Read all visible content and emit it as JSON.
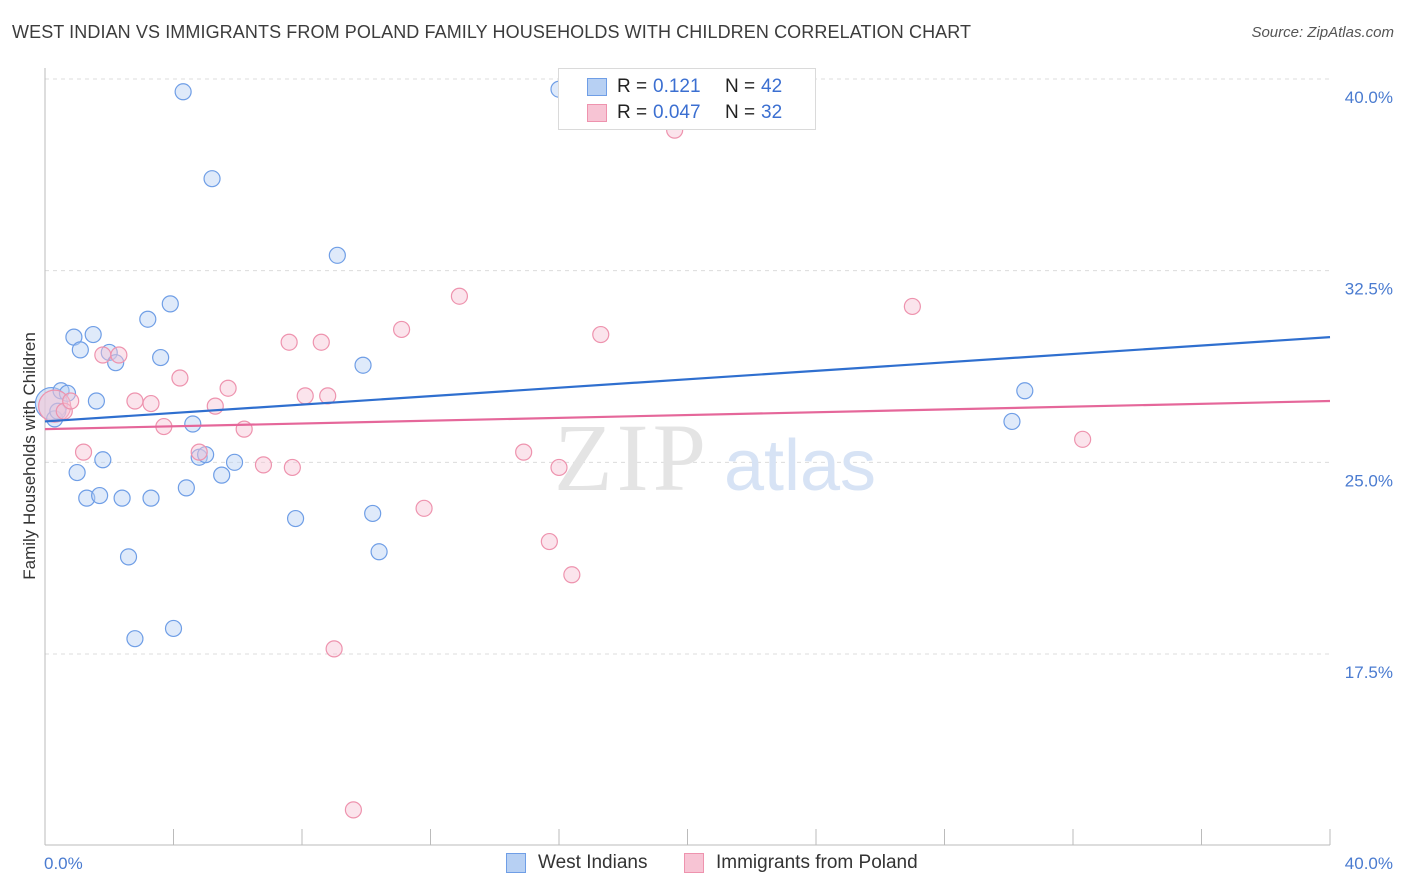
{
  "title": "WEST INDIAN VS IMMIGRANTS FROM POLAND FAMILY HOUSEHOLDS WITH CHILDREN CORRELATION CHART",
  "source": "Source: ZipAtlas.com",
  "watermark": {
    "zip": "ZIP",
    "atlas": "atlas"
  },
  "legend_top": {
    "rows": [
      {
        "r_label": "R =",
        "r_value": "0.121",
        "n_label": "N =",
        "n_value": "42"
      },
      {
        "r_label": "R =",
        "r_value": "0.047",
        "n_label": "N =",
        "n_value": "32"
      }
    ]
  },
  "legend_bottom": {
    "items": [
      "West Indians",
      "Immigrants from Poland"
    ]
  },
  "colors": {
    "blue_fill": "#b7d0f3",
    "blue_stroke": "#6f9ee6",
    "blue_line": "#2f6fcf",
    "pink_fill": "#f7c4d4",
    "pink_stroke": "#ee93ae",
    "pink_line": "#e5679a",
    "tick_text": "#4a7bd0",
    "grid": "#dcdcdc"
  },
  "chart_data": {
    "type": "scatter",
    "xlabel": "",
    "ylabel": "Family Households with Children",
    "xlim": [
      0,
      40
    ],
    "ylim": [
      10.0,
      41.0
    ],
    "x_tick_labels": [
      {
        "value": 0,
        "label": "0.0%"
      },
      {
        "value": 40,
        "label": "40.0%"
      }
    ],
    "y_ticks": [
      {
        "value": 17.5,
        "label": "17.5%"
      },
      {
        "value": 25.0,
        "label": "25.0%"
      },
      {
        "value": 32.5,
        "label": "32.5%"
      },
      {
        "value": 40.0,
        "label": "40.0%"
      }
    ],
    "grid": "horizontal dashed",
    "series": [
      {
        "name": "West Indians",
        "color": "blue",
        "r": "0.121",
        "n": "42",
        "trend": {
          "x": [
            0,
            40
          ],
          "y": [
            26.6,
            29.9
          ]
        },
        "points": [
          [
            0.2,
            27.3,
            "big"
          ],
          [
            0.3,
            26.7
          ],
          [
            0.4,
            27.0
          ],
          [
            0.5,
            27.8
          ],
          [
            0.7,
            27.7
          ],
          [
            0.9,
            29.9
          ],
          [
            1.0,
            24.6
          ],
          [
            1.1,
            29.4
          ],
          [
            1.3,
            23.6
          ],
          [
            1.5,
            30.0
          ],
          [
            1.6,
            27.4
          ],
          [
            1.7,
            23.7
          ],
          [
            1.8,
            25.1
          ],
          [
            2.0,
            29.3
          ],
          [
            2.2,
            28.9
          ],
          [
            2.4,
            23.6
          ],
          [
            2.6,
            21.3
          ],
          [
            2.8,
            18.1
          ],
          [
            3.2,
            30.6
          ],
          [
            3.3,
            23.6
          ],
          [
            3.6,
            29.1
          ],
          [
            3.9,
            31.2
          ],
          [
            4.0,
            18.5
          ],
          [
            4.3,
            39.5
          ],
          [
            4.4,
            24.0
          ],
          [
            4.6,
            26.5
          ],
          [
            4.8,
            25.2
          ],
          [
            5.0,
            25.3
          ],
          [
            5.2,
            36.1
          ],
          [
            5.5,
            24.5
          ],
          [
            5.9,
            25.0
          ],
          [
            7.8,
            22.8
          ],
          [
            9.1,
            33.1
          ],
          [
            9.9,
            28.8
          ],
          [
            10.2,
            23.0
          ],
          [
            10.4,
            21.5
          ],
          [
            16.0,
            39.6
          ],
          [
            30.1,
            26.6
          ],
          [
            30.5,
            27.8
          ]
        ]
      },
      {
        "name": "Immigrants from Poland",
        "color": "pink",
        "r": "0.047",
        "n": "32",
        "trend": {
          "x": [
            0,
            40
          ],
          "y": [
            26.3,
            27.4
          ]
        },
        "points": [
          [
            0.3,
            27.2,
            "big"
          ],
          [
            0.6,
            27.0
          ],
          [
            0.8,
            27.4
          ],
          [
            1.2,
            25.4
          ],
          [
            1.8,
            29.2
          ],
          [
            2.3,
            29.2
          ],
          [
            2.8,
            27.4
          ],
          [
            3.3,
            27.3
          ],
          [
            3.7,
            26.4
          ],
          [
            4.2,
            28.3
          ],
          [
            4.8,
            25.4
          ],
          [
            5.3,
            27.2
          ],
          [
            5.7,
            27.9
          ],
          [
            6.2,
            26.3
          ],
          [
            6.8,
            24.9
          ],
          [
            7.6,
            29.7
          ],
          [
            7.7,
            24.8
          ],
          [
            8.1,
            27.6
          ],
          [
            8.6,
            29.7
          ],
          [
            8.8,
            27.6
          ],
          [
            9.0,
            17.7
          ],
          [
            9.6,
            11.4
          ],
          [
            11.1,
            30.2
          ],
          [
            11.8,
            23.2
          ],
          [
            12.9,
            31.5
          ],
          [
            14.9,
            25.4
          ],
          [
            15.7,
            21.9
          ],
          [
            16.0,
            24.8
          ],
          [
            16.4,
            20.6
          ],
          [
            17.3,
            30.0
          ],
          [
            19.6,
            38.0
          ],
          [
            27.0,
            31.1
          ],
          [
            32.3,
            25.9
          ]
        ]
      }
    ]
  }
}
